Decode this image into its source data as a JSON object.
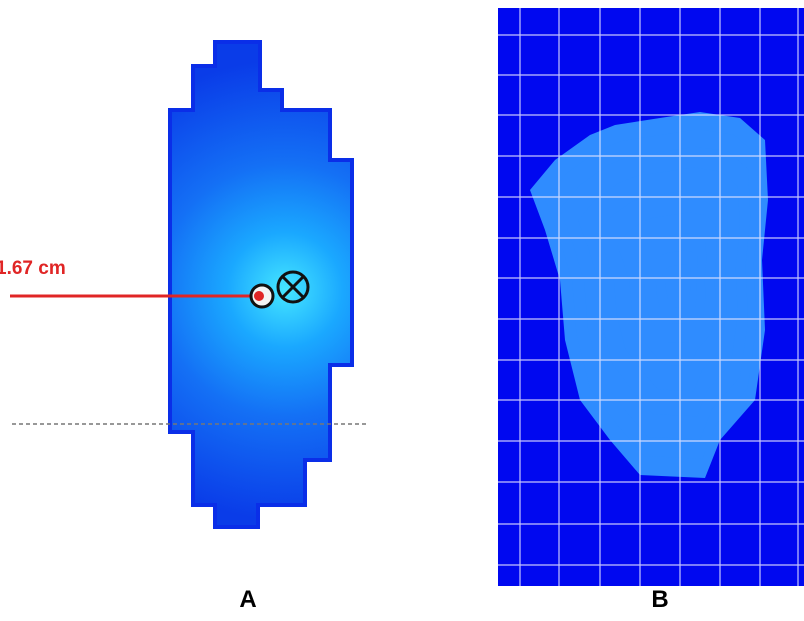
{
  "panels": [
    {
      "label": "A",
      "annotation": "1.67 cm"
    },
    {
      "label": "B"
    }
  ]
}
